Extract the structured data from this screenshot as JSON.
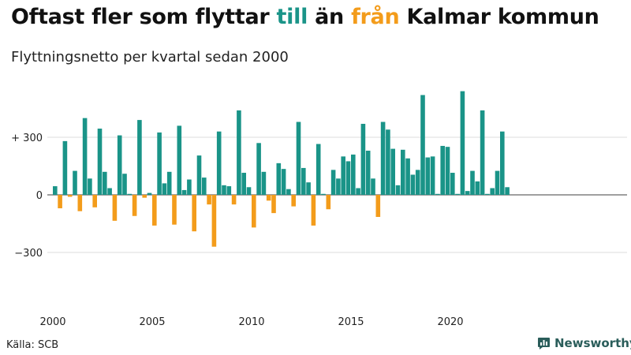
{
  "title": {
    "part1": "Oftast fler som flyttar ",
    "till": "till",
    "part2": " än ",
    "fran": "från",
    "part3": " Kalmar kommun"
  },
  "subtitle": "Flyttningsnetto per kvartal sedan 2000",
  "source": "Källa: SCB",
  "brand": "Newsworthy",
  "colors": {
    "positive": "#1a9488",
    "negative": "#f39c1b",
    "grid": "#dddddd",
    "zero_line": "#666666"
  },
  "chart_data": {
    "type": "bar",
    "x_start_year": 2000,
    "periods_per_year": 4,
    "values": [
      45,
      -70,
      280,
      -10,
      125,
      -85,
      400,
      85,
      -65,
      345,
      120,
      35,
      -135,
      310,
      110,
      5,
      -110,
      390,
      -15,
      10,
      -160,
      325,
      60,
      120,
      -155,
      360,
      25,
      80,
      -190,
      205,
      90,
      -50,
      -270,
      330,
      50,
      45,
      -50,
      440,
      115,
      40,
      -170,
      270,
      120,
      -30,
      -95,
      165,
      135,
      30,
      -60,
      380,
      140,
      65,
      -160,
      265,
      5,
      -75,
      130,
      85,
      200,
      175,
      210,
      35,
      370,
      230,
      85,
      -115,
      380,
      340,
      240,
      50,
      235,
      190,
      105,
      130,
      520,
      195,
      200,
      5,
      255,
      250,
      115,
      5,
      540,
      20,
      125,
      70,
      440,
      5,
      35,
      125,
      330,
      40
    ],
    "x_ticks": [
      "2000",
      "2005",
      "2010",
      "2015",
      "2020"
    ],
    "y_ticks": [
      {
        "value": 300,
        "label": "+ 300"
      },
      {
        "value": 0,
        "label": "0"
      },
      {
        "value": -300,
        "label": "−300"
      }
    ],
    "ylim": [
      -580,
      560
    ]
  }
}
